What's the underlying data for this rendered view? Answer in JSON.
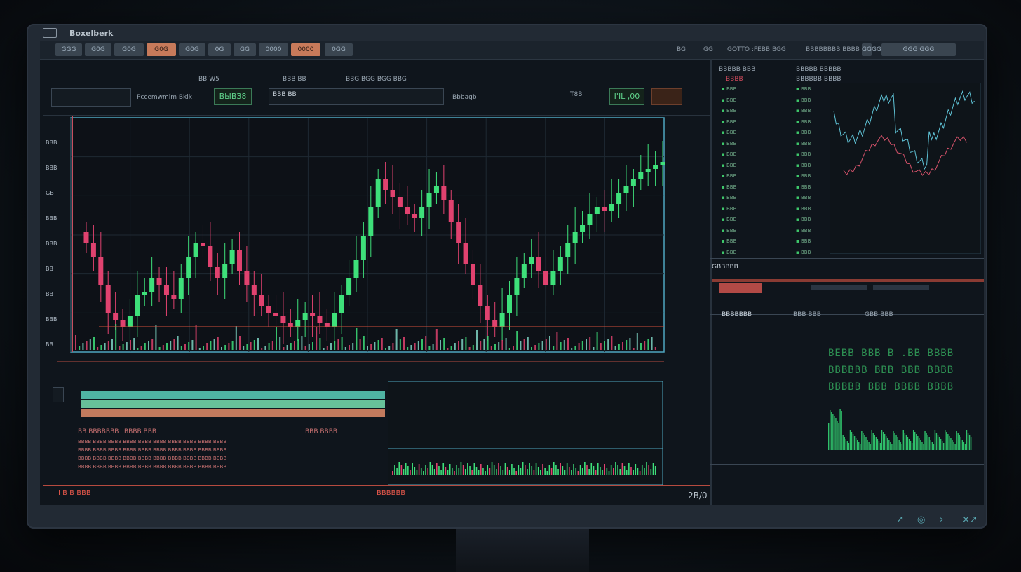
{
  "app": {
    "title": "Boxelberk"
  },
  "toolbar": {
    "buttons": [
      "GGG",
      "G0G",
      "G0G",
      "G0G",
      "G0G",
      "0G",
      "GG",
      "0000",
      "0000",
      "0GG"
    ],
    "right": [
      "BG",
      "GG",
      "GOTTO :FEBB BGG",
      "BBBBBBBB BBBB",
      "GGGG",
      "GGG GGG"
    ]
  },
  "header": {
    "left_labels": [
      "BB W5",
      "BBB BB",
      "BBG BGG BGG BBG"
    ],
    "search_label": "Pccemwmlm Bklk",
    "price_value": "ВЫВЗ8",
    "dropdown_label": "BBB BB",
    "mode_label": "Bbbagb",
    "small_label": "T8B",
    "change_value": "I'IL ,00"
  },
  "colors": {
    "up": "#3ee07a",
    "down": "#e0426f",
    "accent": "#5fc3d6",
    "ma": "#d7536b"
  },
  "chart_data": {
    "type": "candlestick",
    "x": [
      1,
      2,
      3,
      4,
      5,
      6,
      7,
      8,
      9,
      10,
      11,
      12,
      13,
      14,
      15,
      16,
      17,
      18,
      19,
      20,
      21,
      22,
      23,
      24,
      25,
      26,
      27,
      28,
      29,
      30,
      31,
      32,
      33,
      34,
      35,
      36,
      37,
      38,
      39,
      40,
      41,
      42,
      43,
      44,
      45,
      46,
      47,
      48,
      49,
      50,
      51,
      52,
      53,
      54,
      55,
      56,
      57,
      58,
      59,
      60,
      61,
      62,
      63,
      64,
      65,
      66,
      67,
      68,
      69,
      70,
      71,
      72,
      73,
      74,
      75,
      76,
      77,
      78,
      79,
      80
    ],
    "close": [
      70,
      66,
      58,
      50,
      48,
      46,
      49,
      55,
      56,
      60,
      58,
      55,
      54,
      60,
      66,
      70,
      69,
      63,
      60,
      64,
      68,
      62,
      58,
      55,
      52,
      50,
      49,
      47,
      46,
      48,
      50,
      49,
      47,
      46,
      50,
      55,
      60,
      65,
      72,
      80,
      88,
      85,
      83,
      80,
      78,
      77,
      80,
      84,
      86,
      82,
      76,
      70,
      64,
      58,
      52,
      48,
      46,
      50,
      55,
      60,
      64,
      66,
      62,
      58,
      62,
      66,
      70,
      73,
      75,
      78,
      80,
      79,
      81,
      84,
      86,
      88,
      90,
      91,
      92,
      93
    ],
    "y_ticks": [
      "BBB",
      "BBB",
      "GB",
      "BBB",
      "BBB",
      "BB",
      "BB",
      "BBB",
      "BB"
    ]
  },
  "panels": {
    "order_book_header": [
      "BBBBB BBB",
      "BBBBB BBBBB"
    ],
    "order_book_sub": [
      "BBBB",
      "BBBBBB BBBB"
    ],
    "mid_label": "GBBBBB",
    "depth_header": [
      "BBBBBBB",
      "BBB BBB",
      "GBB BBB"
    ],
    "depth_big": [
      "BEBB BBB B .BB BBBB",
      "BBBBBB BBB BBB BBBB",
      "BBBBB BBB BBBB BBBB"
    ],
    "bottom_left": "I B B  BBB",
    "bottom_mid": "BBBBBB",
    "bottom_year": "2B/0",
    "bottom_right_left": "BBBB BBBB",
    "table_headers": [
      "BB BBBBBBB",
      "BBBB BBB",
      "BBB BBBB",
      "BBB BBBB"
    ]
  },
  "lists": {
    "bids": [
      "BBB",
      "BBB",
      "BBB",
      "BBB",
      "BBB",
      "BBB",
      "BBB",
      "BBB",
      "BBB",
      "BBB",
      "BBB",
      "BBB",
      "BBB",
      "BBB",
      "BBB",
      "BBB"
    ],
    "asks": [
      "BBB",
      "BBB",
      "BBB",
      "BBB",
      "BBB",
      "BBB",
      "BBB",
      "BBB",
      "BBB",
      "BBB",
      "BBB",
      "BBB",
      "BBB",
      "BBB",
      "BBB",
      "BBB"
    ]
  },
  "footer_nav": [
    "↗",
    "◎",
    "›",
    "×↗"
  ]
}
